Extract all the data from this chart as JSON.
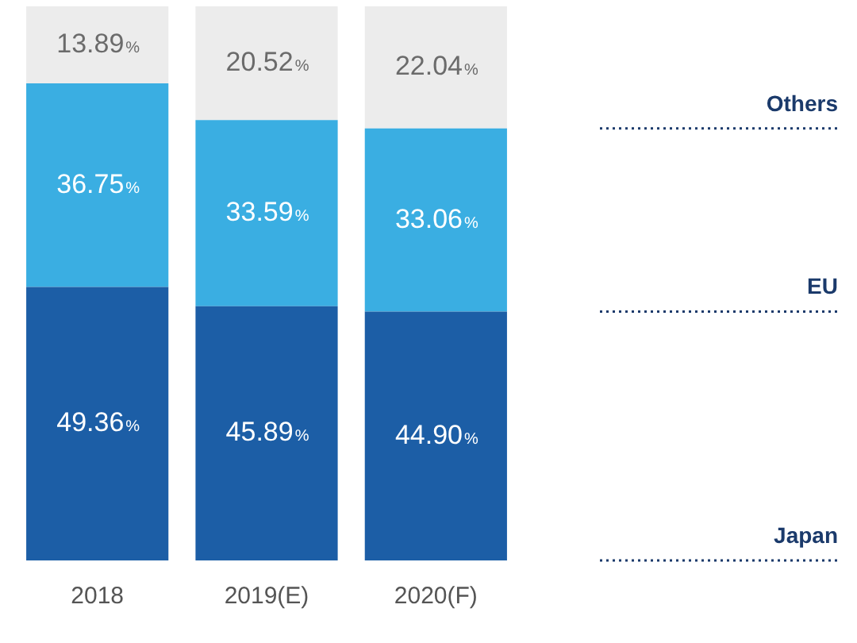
{
  "chart_data": {
    "type": "bar",
    "stacked": true,
    "legend": "right",
    "grid": false,
    "tick_labels": "x",
    "categories": [
      "2018",
      "2019(E)",
      "2020(F)"
    ],
    "series": [
      {
        "name": "Japan",
        "color": "#1c5ea6",
        "values": [
          49.36,
          45.89,
          44.9
        ],
        "value_labels": [
          "49.36%",
          "45.89%",
          "44.90%"
        ]
      },
      {
        "name": "EU",
        "color": "#3aaee2",
        "values": [
          36.75,
          33.59,
          33.06
        ],
        "value_labels": [
          "36.75%",
          "33.59%",
          "33.06%"
        ]
      },
      {
        "name": "Others",
        "color": "#ececec",
        "values": [
          13.89,
          20.52,
          22.04
        ],
        "value_labels": [
          "13.89%",
          "20.52%",
          "22.04%"
        ]
      }
    ]
  }
}
